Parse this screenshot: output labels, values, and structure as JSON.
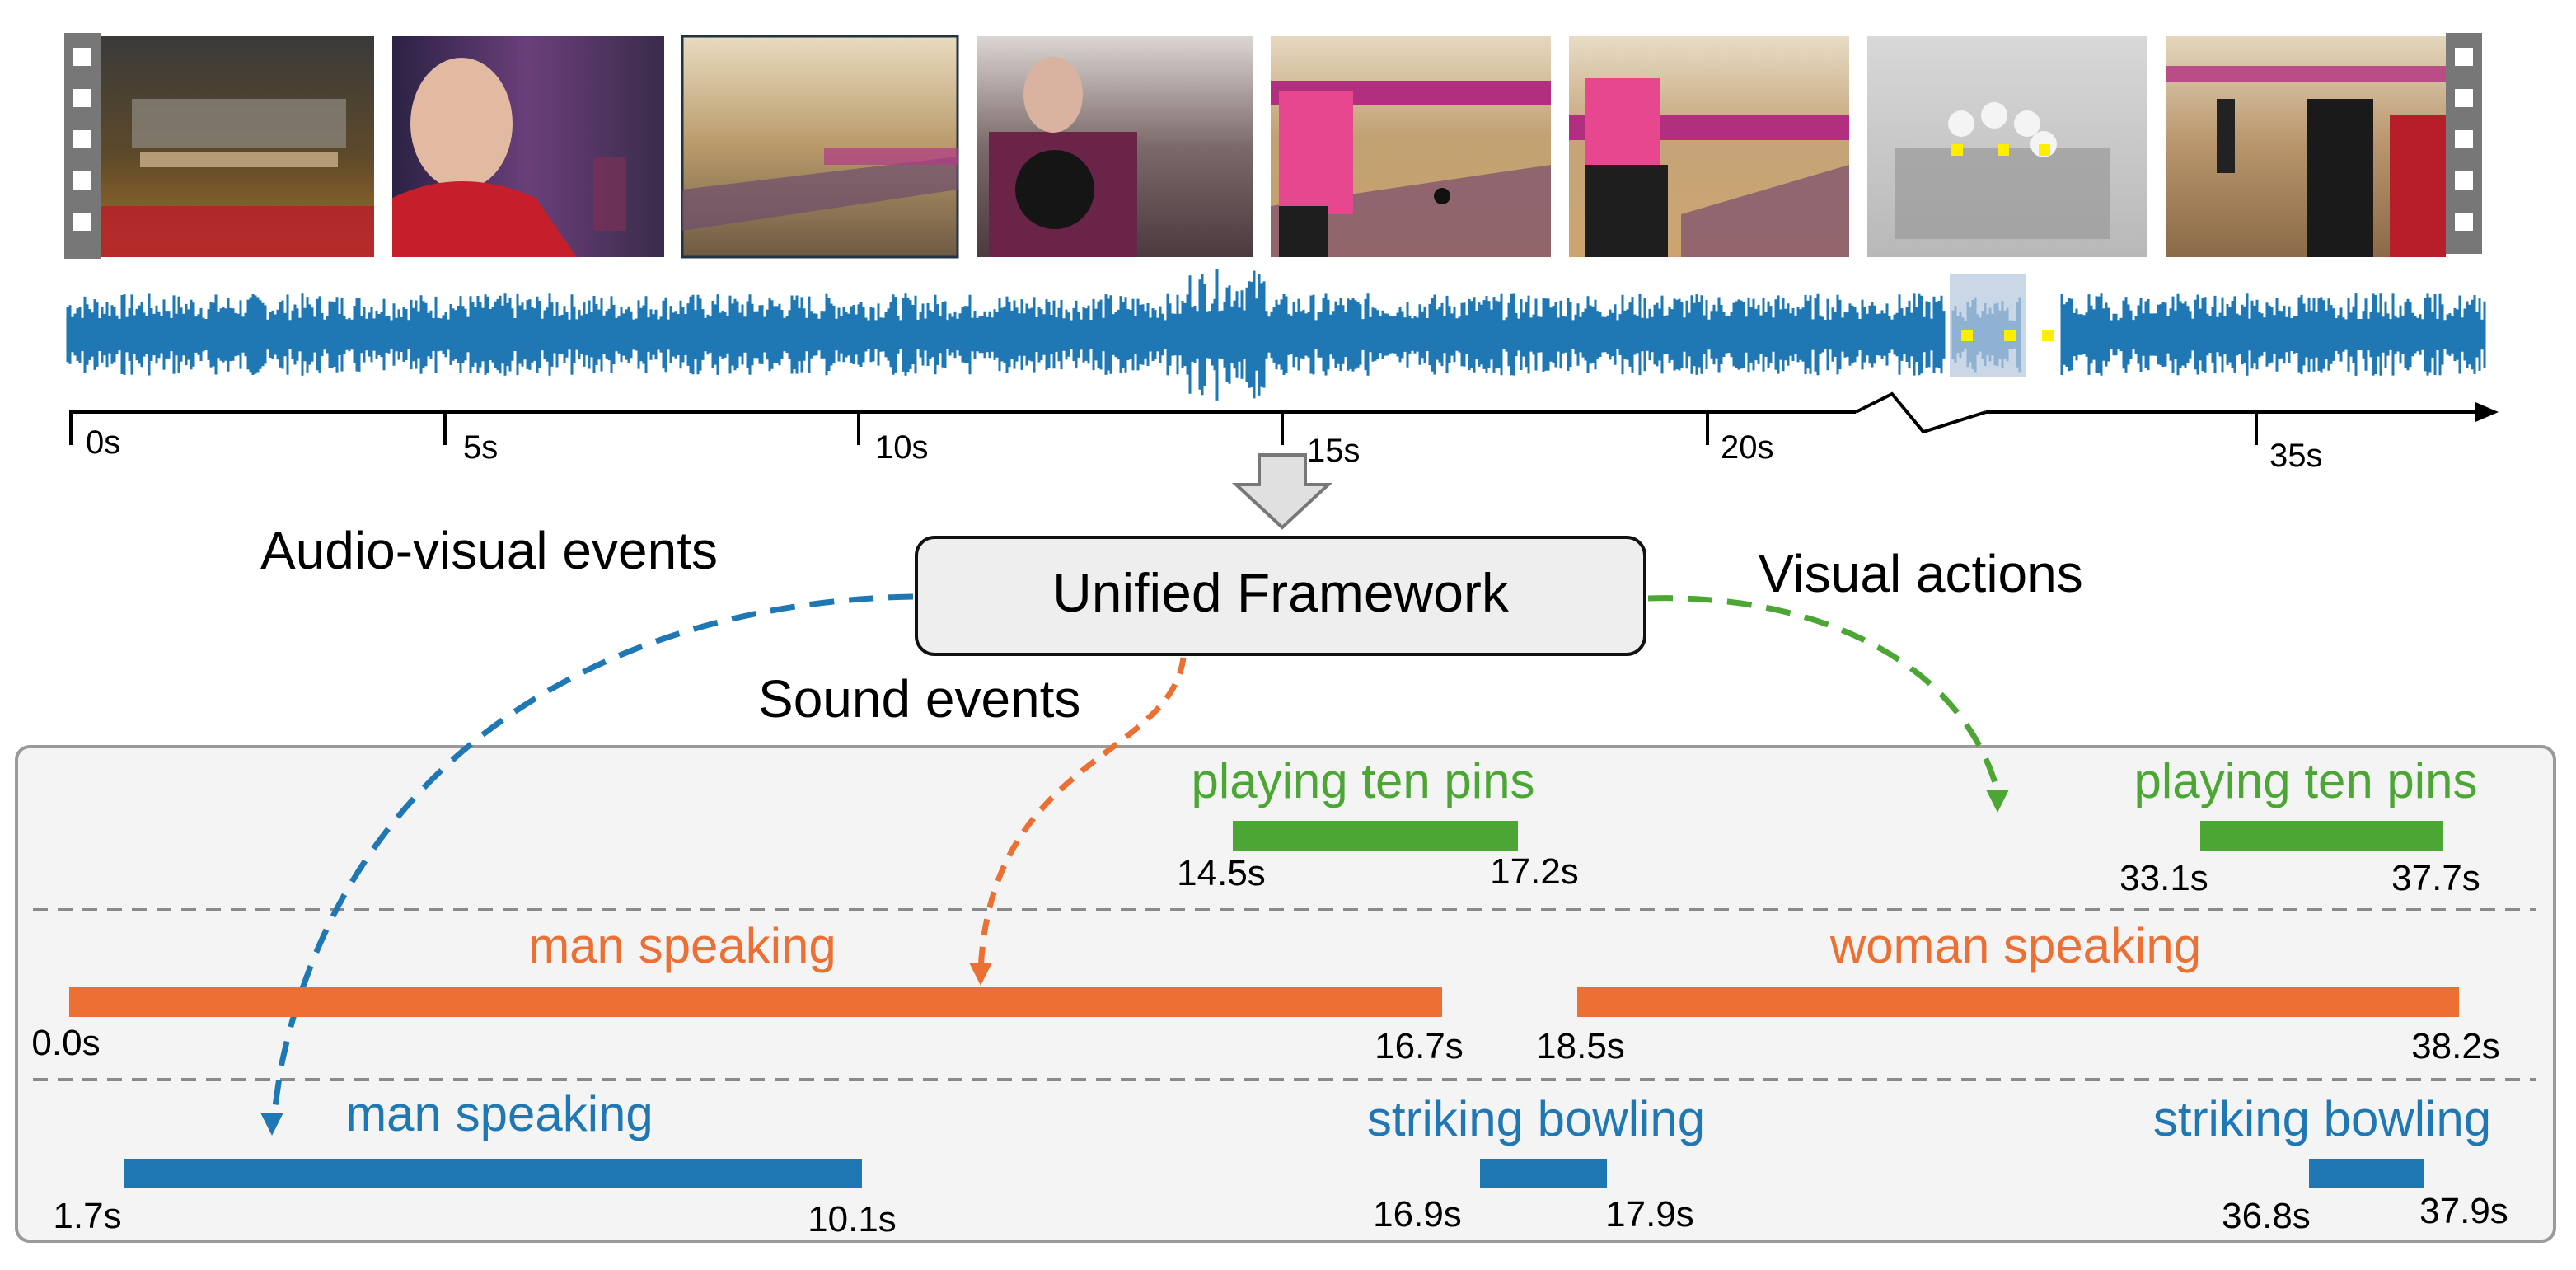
{
  "timeline": {
    "ticks": [
      {
        "label": "0s"
      },
      {
        "label": "5s"
      },
      {
        "label": "10s"
      },
      {
        "label": "15s"
      },
      {
        "label": "20s"
      },
      {
        "label": "35s"
      }
    ]
  },
  "frames": [
    {
      "scene": "bowling lane machine"
    },
    {
      "scene": "man in red speaking"
    },
    {
      "scene": "bowling alley wide view"
    },
    {
      "scene": "girl holding bowling ball"
    },
    {
      "scene": "girl throwing bowling ball"
    },
    {
      "scene": "girl watching ball roll"
    },
    {
      "scene": "bowling pins (masked)"
    },
    {
      "scene": "players walking"
    }
  ],
  "framework": {
    "label": "Unified Framework"
  },
  "categories": {
    "audio_visual": "Audio-visual events",
    "sound": "Sound events",
    "visual": "Visual actions"
  },
  "events": {
    "visual": [
      {
        "label": "playing ten pins",
        "start": "14.5s",
        "end": "17.2s"
      },
      {
        "label": "playing ten pins",
        "start": "33.1s",
        "end": "37.7s"
      }
    ],
    "sound": [
      {
        "label": "man speaking",
        "start": "0.0s",
        "end": "16.7s"
      },
      {
        "label": "woman speaking",
        "start": "18.5s",
        "end": "38.2s"
      }
    ],
    "audio_visual": [
      {
        "label": "man speaking",
        "start": "1.7s",
        "end": "10.1s"
      },
      {
        "label": "striking bowling",
        "start": "16.9s",
        "end": "17.9s"
      },
      {
        "label": "striking bowling",
        "start": "36.8s",
        "end": "37.9s"
      }
    ]
  },
  "colors": {
    "blue": "#1f77b4",
    "orange": "#ec7033",
    "green": "#4ba634",
    "panel_bg": "#f4f4f4",
    "panel_border": "#9a9a9a",
    "box_bg": "#eeeeee"
  }
}
